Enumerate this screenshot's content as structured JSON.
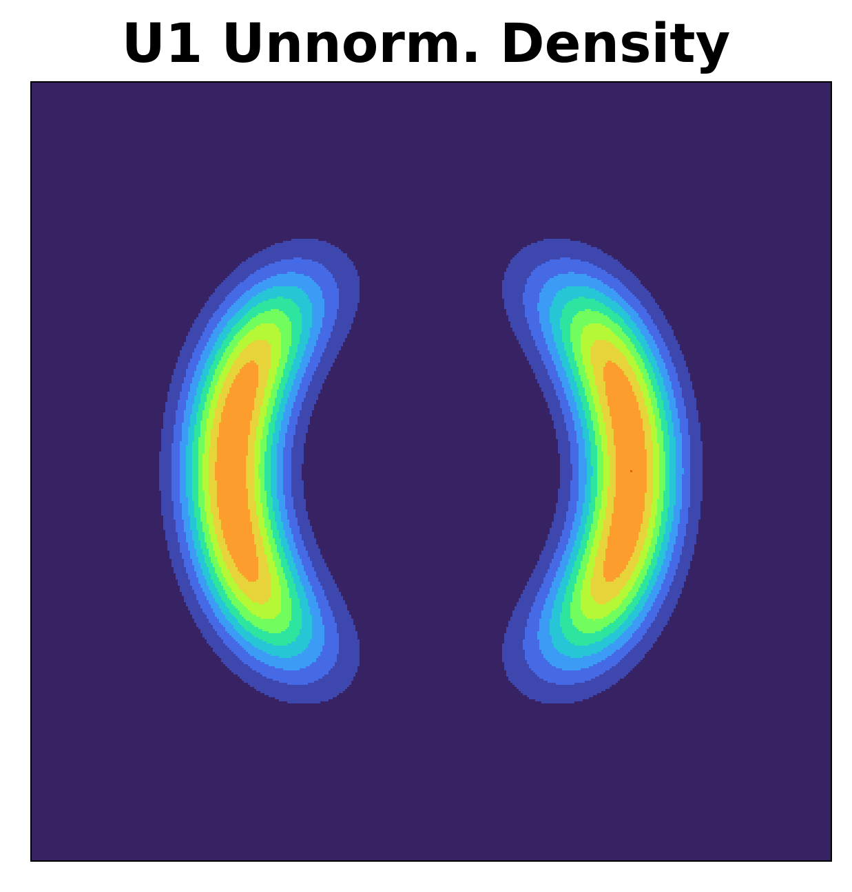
{
  "chart_data": {
    "type": "contourf",
    "title": "U1 Unnorm. Density",
    "xlabel": "",
    "ylabel": "",
    "xlim": [
      -4,
      4
    ],
    "ylim": [
      -4,
      4
    ],
    "grid": false,
    "ticks": false,
    "colormap": "turbo",
    "function": "exp(-U1(z)), U1(z) = 0.5*((|z| - 2)/0.4)^2 - log(exp(-0.5*((z1 - 2)/0.6)^2) + exp(-0.5*((z1 + 2)/0.6)^2))",
    "levels": [
      0.0,
      0.1,
      0.2,
      0.3,
      0.4,
      0.5,
      0.6,
      0.7,
      0.8,
      0.9,
      1.0,
      1.1
    ],
    "level_colors": [
      "#372263",
      "#3e47ad",
      "#4669e5",
      "#3b9bf5",
      "#27c6d6",
      "#2de59f",
      "#72fd5e",
      "#b5f836",
      "#e6d43a",
      "#fd9d2e",
      "#ef5912",
      "#cd2a04",
      "#a31401"
    ],
    "background_color": "#372263",
    "frame_color": "#000000"
  }
}
